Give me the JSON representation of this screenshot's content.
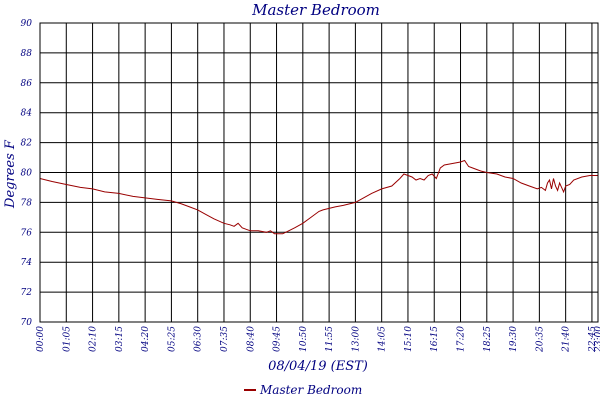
{
  "chart_data": {
    "type": "line",
    "title": "Master Bedroom",
    "xlabel": "08/04/19 (EST)",
    "ylabel": "Degrees F",
    "ylim": [
      70,
      90
    ],
    "yticks": [
      "70",
      "72",
      "74",
      "76",
      "78",
      "80",
      "82",
      "84",
      "86",
      "88",
      "90"
    ],
    "xlim_minutes": [
      0,
      1380
    ],
    "xticks": [
      {
        "label": "00:00",
        "minute": 0
      },
      {
        "label": "01:05",
        "minute": 65
      },
      {
        "label": "02:10",
        "minute": 130
      },
      {
        "label": "03:15",
        "minute": 195
      },
      {
        "label": "04:20",
        "minute": 260
      },
      {
        "label": "05:25",
        "minute": 325
      },
      {
        "label": "06:30",
        "minute": 390
      },
      {
        "label": "07:35",
        "minute": 455
      },
      {
        "label": "08:40",
        "minute": 520
      },
      {
        "label": "09:45",
        "minute": 585
      },
      {
        "label": "10:50",
        "minute": 650
      },
      {
        "label": "11:55",
        "minute": 715
      },
      {
        "label": "13:00",
        "minute": 780
      },
      {
        "label": "14:05",
        "minute": 845
      },
      {
        "label": "15:10",
        "minute": 910
      },
      {
        "label": "16:15",
        "minute": 975
      },
      {
        "label": "17:20",
        "minute": 1040
      },
      {
        "label": "18:25",
        "minute": 1105
      },
      {
        "label": "19:30",
        "minute": 1170
      },
      {
        "label": "20:35",
        "minute": 1235
      },
      {
        "label": "21:40",
        "minute": 1300
      },
      {
        "label": "22:45",
        "minute": 1365
      },
      {
        "label": "23:00",
        "minute": 1380
      }
    ],
    "grid": true,
    "legend": "bottom-center",
    "series": [
      {
        "name": "Master Bedroom",
        "color": "#990000",
        "x": [
          0,
          30,
          65,
          100,
          130,
          160,
          195,
          230,
          260,
          290,
          325,
          350,
          370,
          390,
          410,
          430,
          455,
          470,
          480,
          490,
          500,
          510,
          520,
          540,
          560,
          570,
          580,
          590,
          600,
          615,
          630,
          650,
          670,
          690,
          700,
          715,
          730,
          750,
          780,
          800,
          820,
          845,
          870,
          890,
          900,
          910,
          920,
          930,
          940,
          950,
          960,
          970,
          980,
          990,
          1000,
          1020,
          1040,
          1050,
          1060,
          1070,
          1080,
          1090,
          1105,
          1130,
          1150,
          1170,
          1190,
          1210,
          1230,
          1240,
          1250,
          1255,
          1260,
          1265,
          1270,
          1275,
          1280,
          1285,
          1290,
          1295,
          1300,
          1310,
          1320,
          1340,
          1360,
          1370,
          1380
        ],
        "y": [
          79.6,
          79.4,
          79.2,
          79.0,
          78.9,
          78.7,
          78.6,
          78.4,
          78.3,
          78.2,
          78.1,
          77.9,
          77.7,
          77.5,
          77.2,
          76.9,
          76.6,
          76.5,
          76.4,
          76.6,
          76.3,
          76.2,
          76.1,
          76.1,
          76.0,
          76.1,
          75.9,
          75.9,
          75.9,
          76.1,
          76.3,
          76.6,
          77.0,
          77.4,
          77.5,
          77.6,
          77.7,
          77.8,
          78.0,
          78.3,
          78.6,
          78.9,
          79.1,
          79.6,
          79.9,
          79.8,
          79.7,
          79.5,
          79.6,
          79.5,
          79.8,
          79.9,
          79.6,
          80.3,
          80.5,
          80.6,
          80.7,
          80.8,
          80.4,
          80.3,
          80.2,
          80.1,
          80.0,
          79.9,
          79.7,
          79.6,
          79.3,
          79.1,
          78.9,
          79.0,
          78.8,
          79.3,
          79.5,
          78.9,
          79.6,
          79.1,
          78.8,
          79.3,
          79.0,
          78.7,
          79.1,
          79.2,
          79.5,
          79.7,
          79.8,
          79.8,
          79.8
        ]
      }
    ]
  }
}
